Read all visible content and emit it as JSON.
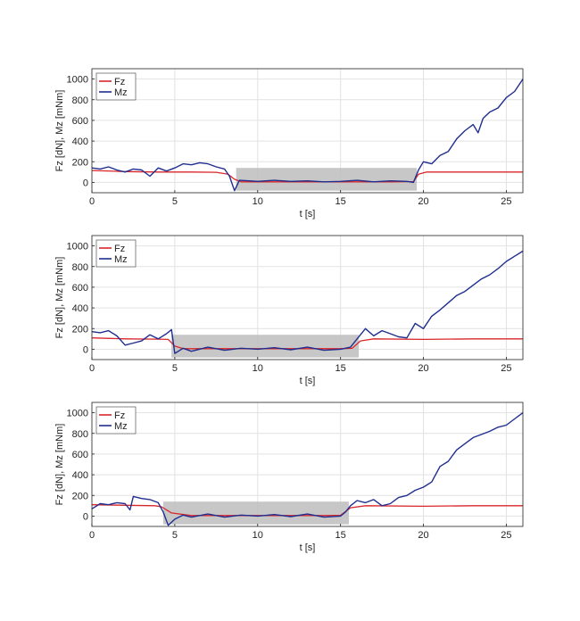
{
  "colors": {
    "fz": "#d9262a",
    "mz": "#1f2e8f",
    "shade": "#bdbdbd",
    "grid": "#e2e2e2",
    "axis": "#222222"
  },
  "chart_data": [
    {
      "type": "line",
      "xlabel": "t [s]",
      "ylabel": "Fz [dN], Mz [mNm]",
      "xlim": [
        0,
        26
      ],
      "ylim": [
        -100,
        1100
      ],
      "xticks": [
        0,
        5,
        10,
        15,
        20,
        25
      ],
      "yticks": [
        0,
        200,
        400,
        600,
        800,
        1000
      ],
      "grid": true,
      "legend": "top-left",
      "shaded_region": {
        "x": [
          8.7,
          19.6
        ],
        "y": [
          -80,
          140
        ]
      },
      "series": [
        {
          "name": "Fz",
          "color": "#d9262a",
          "x": [
            0,
            2,
            4,
            6,
            7.5,
            8.2,
            8.6,
            9,
            12,
            15,
            18,
            19.4,
            19.7,
            20.2,
            22,
            24,
            26
          ],
          "y": [
            115,
            105,
            100,
            100,
            98,
            80,
            30,
            5,
            5,
            5,
            5,
            8,
            80,
            100,
            100,
            100,
            100
          ]
        },
        {
          "name": "Mz",
          "color": "#1f2e8f",
          "x": [
            0,
            0.5,
            1,
            1.5,
            2,
            2.5,
            3,
            3.5,
            4,
            4.5,
            5,
            5.5,
            6,
            6.5,
            7,
            7.5,
            8,
            8.3,
            8.6,
            8.9,
            9.5,
            10,
            11,
            12,
            13,
            14,
            15,
            16,
            17,
            18,
            19,
            19.4,
            19.7,
            20,
            20.5,
            21,
            21.5,
            22,
            22.5,
            23,
            23.3,
            23.6,
            24,
            24.5,
            25,
            25.5,
            26
          ],
          "y": [
            140,
            130,
            150,
            120,
            100,
            130,
            120,
            60,
            140,
            110,
            140,
            180,
            170,
            190,
            180,
            150,
            130,
            60,
            -80,
            20,
            15,
            10,
            20,
            10,
            15,
            5,
            10,
            20,
            5,
            15,
            10,
            0,
            120,
            200,
            180,
            260,
            300,
            420,
            500,
            560,
            480,
            620,
            680,
            720,
            820,
            880,
            1000
          ]
        }
      ]
    },
    {
      "type": "line",
      "xlabel": "t [s]",
      "ylabel": "Fz [dN], Mz [mNm]",
      "xlim": [
        0,
        26
      ],
      "ylim": [
        -100,
        1100
      ],
      "xticks": [
        0,
        5,
        10,
        15,
        20,
        25
      ],
      "yticks": [
        0,
        200,
        400,
        600,
        800,
        1000
      ],
      "grid": true,
      "legend": "top-left",
      "shaded_region": {
        "x": [
          4.8,
          16.1
        ],
        "y": [
          -80,
          140
        ]
      },
      "series": [
        {
          "name": "Fz",
          "color": "#d9262a",
          "x": [
            0,
            2,
            4,
            4.6,
            5,
            5.5,
            8,
            12,
            15,
            15.7,
            16.2,
            17,
            20,
            23,
            26
          ],
          "y": [
            110,
            100,
            98,
            95,
            30,
            5,
            5,
            5,
            5,
            10,
            80,
            100,
            95,
            100,
            100
          ]
        },
        {
          "name": "Mz",
          "color": "#1f2e8f",
          "x": [
            0,
            0.5,
            1,
            1.5,
            2,
            2.5,
            3,
            3.5,
            4,
            4.5,
            4.8,
            5,
            5.5,
            6,
            7,
            8,
            9,
            10,
            11,
            12,
            13,
            14,
            15,
            15.6,
            16,
            16.5,
            17,
            17.5,
            18,
            18.5,
            19,
            19.5,
            20,
            20.5,
            21,
            21.5,
            22,
            22.5,
            23,
            23.5,
            24,
            24.5,
            25,
            25.5,
            26
          ],
          "y": [
            170,
            160,
            180,
            130,
            40,
            60,
            80,
            140,
            100,
            150,
            190,
            -40,
            10,
            -20,
            20,
            -10,
            10,
            0,
            15,
            -5,
            20,
            -10,
            0,
            20,
            100,
            200,
            130,
            180,
            150,
            120,
            110,
            250,
            200,
            320,
            380,
            450,
            520,
            560,
            620,
            680,
            720,
            780,
            850,
            900,
            950
          ]
        }
      ]
    },
    {
      "type": "line",
      "xlabel": "t [s]",
      "ylabel": "Fz [dN], Mz [mNm]",
      "xlim": [
        0,
        26
      ],
      "ylim": [
        -100,
        1100
      ],
      "xticks": [
        0,
        5,
        10,
        15,
        20,
        25
      ],
      "yticks": [
        0,
        200,
        400,
        600,
        800,
        1000
      ],
      "grid": true,
      "legend": "top-right",
      "shaded_region": {
        "x": [
          4.3,
          15.5
        ],
        "y": [
          -80,
          140
        ]
      },
      "series": [
        {
          "name": "Fz",
          "color": "#d9262a",
          "x": [
            0,
            2,
            3.8,
            4.2,
            4.8,
            6,
            10,
            14,
            15,
            15.6,
            16.5,
            20,
            23,
            26
          ],
          "y": [
            110,
            105,
            100,
            90,
            30,
            5,
            5,
            5,
            8,
            80,
            100,
            95,
            100,
            100
          ]
        },
        {
          "name": "Mz",
          "color": "#1f2e8f",
          "x": [
            0,
            0.5,
            1,
            1.5,
            2,
            2.3,
            2.5,
            3,
            3.5,
            4,
            4.3,
            4.6,
            5,
            5.5,
            6,
            7,
            8,
            9,
            10,
            11,
            12,
            13,
            14,
            15,
            15.3,
            15.6,
            16,
            16.5,
            17,
            17.5,
            18,
            18.5,
            19,
            19.5,
            20,
            20.5,
            21,
            21.5,
            22,
            22.5,
            23,
            23.5,
            24,
            24.5,
            25,
            25.5,
            26
          ],
          "y": [
            70,
            120,
            110,
            130,
            120,
            60,
            190,
            170,
            160,
            130,
            40,
            -90,
            -30,
            10,
            -10,
            20,
            -10,
            10,
            0,
            15,
            -5,
            20,
            -10,
            0,
            40,
            100,
            150,
            130,
            160,
            100,
            120,
            180,
            200,
            250,
            280,
            330,
            480,
            530,
            640,
            700,
            760,
            790,
            820,
            860,
            880,
            940,
            1000
          ]
        }
      ]
    }
  ]
}
